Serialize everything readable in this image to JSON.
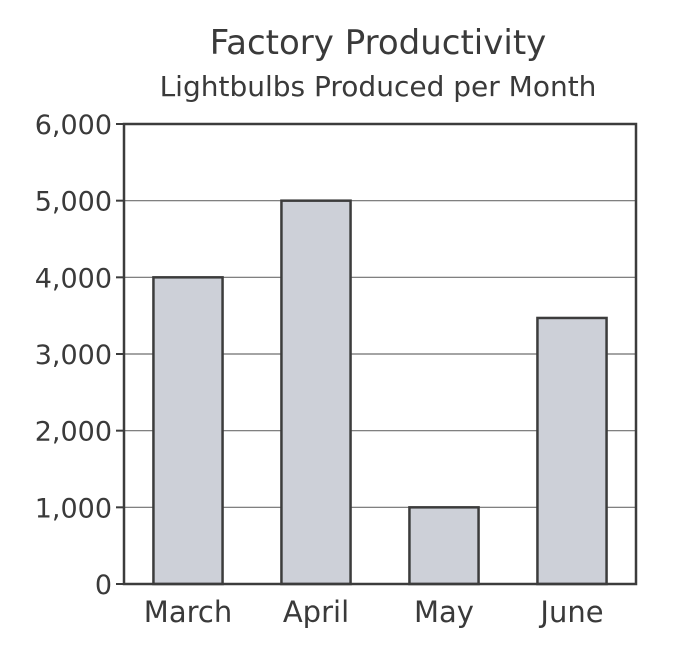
{
  "chart_data": {
    "type": "bar",
    "title": "Factory Productivity",
    "subtitle": "Lightbulbs Produced per Month",
    "xlabel": "",
    "ylabel": "",
    "categories": [
      "March",
      "April",
      "May",
      "June"
    ],
    "values": [
      4000,
      5000,
      1000,
      3470
    ],
    "ylim": [
      0,
      6000
    ],
    "yticks": [
      0,
      1000,
      2000,
      3000,
      4000,
      5000,
      6000
    ],
    "ytick_labels": [
      "0",
      "1,000",
      "2,000",
      "3,000",
      "4,000",
      "5,000",
      "6,000"
    ],
    "grid": true,
    "legend": "none",
    "colors": {
      "bar_fill": "#cdd0d8",
      "bar_stroke": "#3c3c3c",
      "axis": "#3c3c3c",
      "grid": "#6e6e6e",
      "text": "#3a3a3a"
    }
  }
}
